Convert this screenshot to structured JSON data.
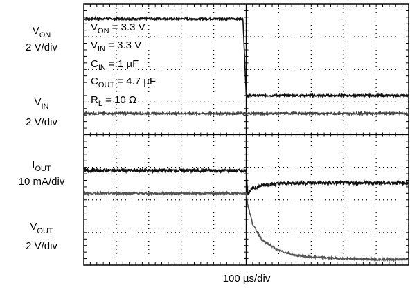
{
  "chart_data": {
    "type": "line",
    "title": "",
    "xlabel": "100 µs/div",
    "x_divisions": 10,
    "y_divisions": 8,
    "x_unit": "div",
    "x": [
      0,
      1,
      2,
      3,
      4,
      4.9,
      5.0,
      5.05,
      5.2,
      5.5,
      6,
      6.5,
      7,
      8,
      9,
      10
    ],
    "channel_labels": [
      {
        "name": "V",
        "sub": "ON",
        "scale": "2 V/div"
      },
      {
        "name": "V",
        "sub": "IN",
        "scale": "2 V/div"
      },
      {
        "name": "I",
        "sub": "OUT",
        "scale": "10 mA/div"
      },
      {
        "name": "V",
        "sub": "OUT",
        "scale": "2 V/div"
      }
    ],
    "series": [
      {
        "name": "VON",
        "color": "#111111",
        "noise": 0.03,
        "values": [
          7.55,
          7.55,
          7.55,
          7.55,
          7.55,
          7.55,
          5.2,
          5.2,
          5.2,
          5.2,
          5.2,
          5.2,
          5.2,
          5.2,
          5.2,
          5.2
        ]
      },
      {
        "name": "VIN",
        "color": "#444444",
        "noise": 0.03,
        "values": [
          4.65,
          4.65,
          4.65,
          4.65,
          4.65,
          4.65,
          4.65,
          4.65,
          4.65,
          4.65,
          4.65,
          4.65,
          4.65,
          4.65,
          4.65,
          4.65
        ]
      },
      {
        "name": "IOUT",
        "color": "#111111",
        "noise": 0.05,
        "values": [
          2.9,
          2.9,
          2.9,
          2.9,
          2.9,
          2.9,
          2.9,
          2.2,
          2.35,
          2.45,
          2.5,
          2.52,
          2.52,
          2.52,
          2.52,
          2.52
        ]
      },
      {
        "name": "VOUT",
        "color": "#555555",
        "noise": 0.03,
        "values": [
          2.2,
          2.2,
          2.2,
          2.2,
          2.2,
          2.2,
          2.2,
          1.85,
          1.25,
          0.75,
          0.45,
          0.3,
          0.25,
          0.2,
          0.18,
          0.17
        ]
      }
    ],
    "annotation": {
      "lines": [
        {
          "main": "V",
          "sub": "ON",
          "rest": " = 3.3 V"
        },
        {
          "main": "V",
          "sub": "IN",
          "rest": " = 3.3 V"
        },
        {
          "main": "C",
          "sub": "IN",
          "rest": " = 1 µF"
        },
        {
          "main": "C",
          "sub": "OUT",
          "rest": " = 4.7 µF"
        },
        {
          "main": "R",
          "sub": "L",
          "rest": " = 10 Ω"
        }
      ]
    },
    "grid": true
  }
}
